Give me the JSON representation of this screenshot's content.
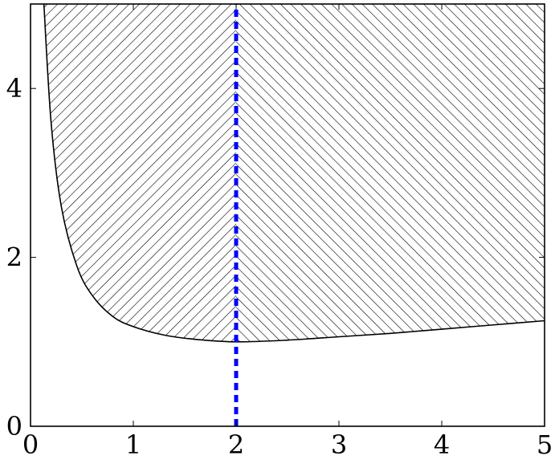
{
  "chart_data": {
    "type": "area",
    "title": "",
    "xlabel": "",
    "ylabel": "",
    "xlim": [
      0,
      5
    ],
    "ylim": [
      0,
      5
    ],
    "grid": false,
    "legend": "none",
    "x_ticks": [
      0,
      1,
      2,
      3,
      4,
      5
    ],
    "y_ticks": [
      0,
      2,
      4
    ],
    "x_tick_labels": [
      "0",
      "1",
      "2",
      "3",
      "4",
      "5"
    ],
    "y_tick_labels": [
      "0",
      "2",
      "4"
    ],
    "region": {
      "fill_pattern": "hatched",
      "bounded_below_by": "curve",
      "bounded_above_by_y": 5,
      "curve_points": [
        {
          "x": 0.13,
          "y": 5.0
        },
        {
          "x": 0.2,
          "y": 3.6
        },
        {
          "x": 0.3,
          "y": 2.6
        },
        {
          "x": 0.45,
          "y": 1.9
        },
        {
          "x": 0.6,
          "y": 1.55
        },
        {
          "x": 0.8,
          "y": 1.3
        },
        {
          "x": 1.0,
          "y": 1.18
        },
        {
          "x": 1.3,
          "y": 1.08
        },
        {
          "x": 1.6,
          "y": 1.03
        },
        {
          "x": 2.0,
          "y": 1.0
        },
        {
          "x": 2.5,
          "y": 1.02
        },
        {
          "x": 3.0,
          "y": 1.06
        },
        {
          "x": 3.5,
          "y": 1.1
        },
        {
          "x": 4.0,
          "y": 1.15
        },
        {
          "x": 4.5,
          "y": 1.2
        },
        {
          "x": 5.0,
          "y": 1.25
        }
      ],
      "hatch_left_of_x": 2,
      "color": "#000000"
    },
    "vertical_line": {
      "x": 2,
      "style": "dashed",
      "color": "#0000ff"
    }
  }
}
